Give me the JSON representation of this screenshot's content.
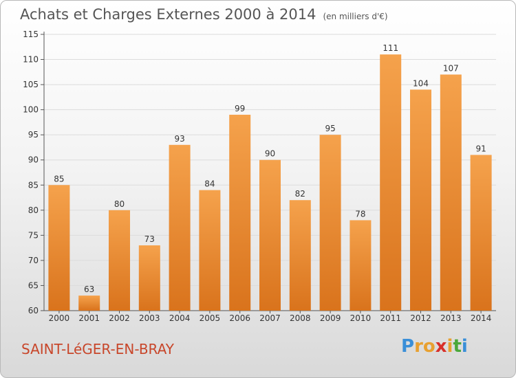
{
  "header": {
    "title": "Achats et Charges Externes 2000 à 2014",
    "subtitle": "(en milliers d'€)"
  },
  "footer": {
    "commune": "SAINT-LéGER-EN-BRAY",
    "logo_letters": [
      {
        "ch": "P",
        "color": "#3a8fd8"
      },
      {
        "ch": "r",
        "color": "#e8a030"
      },
      {
        "ch": "o",
        "color": "#e8a030"
      },
      {
        "ch": "x",
        "color": "#d8302a"
      },
      {
        "ch": "i",
        "color": "#e8a030"
      },
      {
        "ch": "t",
        "color": "#4aa83a"
      },
      {
        "ch": "i",
        "color": "#3a8fd8"
      }
    ]
  },
  "chart_data": {
    "type": "bar",
    "categories": [
      "2000",
      "2001",
      "2002",
      "2003",
      "2004",
      "2005",
      "2006",
      "2007",
      "2008",
      "2009",
      "2010",
      "2011",
      "2012",
      "2013",
      "2014"
    ],
    "values": [
      85,
      63,
      80,
      73,
      93,
      84,
      99,
      90,
      82,
      95,
      78,
      111,
      104,
      107,
      91
    ],
    "ylim": [
      60,
      115
    ],
    "yticks": [
      60,
      65,
      70,
      75,
      80,
      85,
      90,
      95,
      100,
      105,
      110,
      115
    ],
    "grid": true,
    "bar_color_top": "#f5a24c",
    "bar_color_bottom": "#d9731c"
  }
}
